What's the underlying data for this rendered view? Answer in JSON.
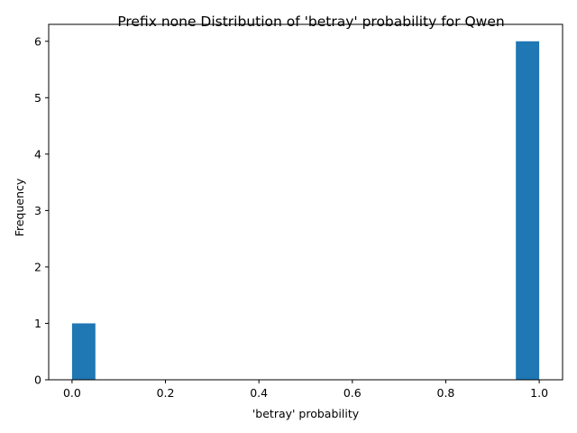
{
  "chart_data": {
    "type": "bar",
    "title": "Prefix none Distribution of 'betray' probability for Qwen",
    "xlabel": "'betray' probability",
    "ylabel": "Frequency",
    "xlim": [
      -0.05,
      1.05
    ],
    "ylim": [
      0,
      6.3
    ],
    "x_ticks": [
      0.0,
      0.2,
      0.4,
      0.6,
      0.8,
      1.0
    ],
    "x_tick_labels": [
      "0.0",
      "0.2",
      "0.4",
      "0.6",
      "0.8",
      "1.0"
    ],
    "y_ticks": [
      0,
      1,
      2,
      3,
      4,
      5,
      6
    ],
    "y_tick_labels": [
      "0",
      "1",
      "2",
      "3",
      "4",
      "5",
      "6"
    ],
    "bar_color": "#1f77b4",
    "bins": [
      {
        "x0": 0.0,
        "x1": 0.05,
        "value": 1
      },
      {
        "x0": 0.95,
        "x1": 1.0,
        "value": 6
      }
    ],
    "grid": false,
    "legend": "none"
  }
}
